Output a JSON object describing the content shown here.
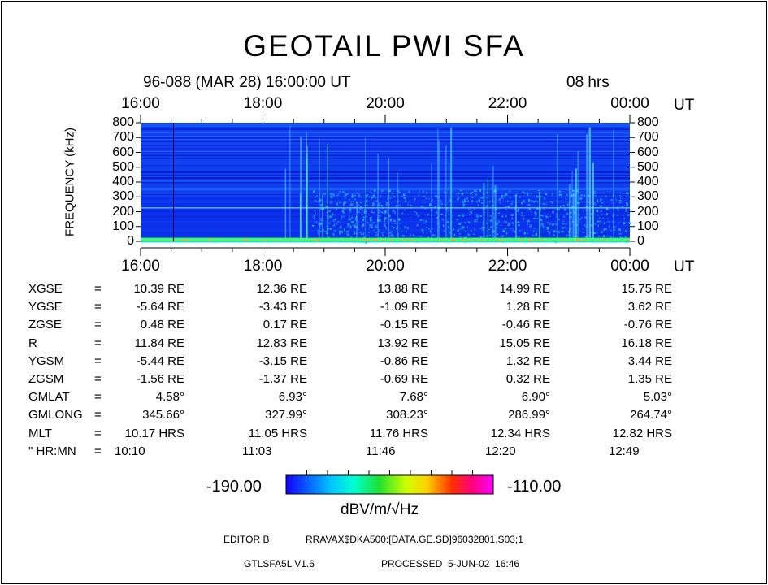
{
  "title": "GEOTAIL PWI SFA",
  "header": {
    "date": "96-088 (MAR 28) 16:00:00 UT",
    "duration": "08 hrs"
  },
  "chart_data": {
    "type": "heatmap",
    "title": "GEOTAIL PWI SFA",
    "xlabel": "UT",
    "ylabel": "FREQUENCY (kHz)",
    "x_ticks": [
      "16:00",
      "18:00",
      "20:00",
      "22:00",
      "00:00"
    ],
    "x_unit": "UT",
    "y_ticks": [
      "0",
      "100",
      "200",
      "300",
      "400",
      "500",
      "600",
      "700",
      "800"
    ],
    "ylim": [
      0,
      800
    ],
    "xlim": [
      "16:00",
      "00:00"
    ],
    "colorbar": {
      "min": "-190.00",
      "max": "-110.00",
      "label": "dBV/m/√Hz"
    }
  },
  "ephemeris": {
    "rows": [
      {
        "label": "XGSE",
        "eq": "=",
        "values": [
          "10.39 RE",
          "12.36 RE",
          "13.88 RE",
          "14.99 RE",
          "15.75 RE"
        ]
      },
      {
        "label": "YGSE",
        "eq": "=",
        "values": [
          "-5.64 RE",
          "-3.43 RE",
          "-1.09 RE",
          "1.28 RE",
          "3.62 RE"
        ]
      },
      {
        "label": "ZGSE",
        "eq": "=",
        "values": [
          "0.48 RE",
          "0.17 RE",
          "-0.15 RE",
          "-0.46 RE",
          "-0.76 RE"
        ]
      },
      {
        "label": "R",
        "eq": "=",
        "values": [
          "11.84 RE",
          "12.83 RE",
          "13.92 RE",
          "15.05 RE",
          "16.18 RE"
        ]
      },
      {
        "label": "YGSM",
        "eq": "=",
        "values": [
          "-5.44 RE",
          "-3.15 RE",
          "-0.86 RE",
          "1.32 RE",
          "3.44 RE"
        ]
      },
      {
        "label": "ZGSM",
        "eq": "=",
        "values": [
          "-1.56 RE",
          "-1.37 RE",
          "-0.69 RE",
          "0.32 RE",
          "1.35 RE"
        ]
      },
      {
        "label": "GMLAT",
        "eq": "=",
        "values": [
          "4.58°",
          "6.93°",
          "7.68°",
          "6.90°",
          "5.03°"
        ]
      },
      {
        "label": "GMLONG",
        "eq": "=",
        "values": [
          "345.66°",
          "327.99°",
          "308.23°",
          "286.99°",
          "264.74°"
        ]
      },
      {
        "label": "MLT",
        "eq": "=",
        "values": [
          "10.17 HRS",
          "11.05 HRS",
          "11.76 HRS",
          "12.34 HRS",
          "12.82 HRS"
        ]
      },
      {
        "label": "\" HR:MN",
        "eq": "=",
        "values": [
          "10:10",
          "11:03",
          "11:46",
          "12:20",
          "12:49"
        ]
      }
    ]
  },
  "footer": {
    "editor": "EDITOR B",
    "path": "RRAVAX$DKA500:[DATA.GE.SD]96032801.S03;1",
    "program": "GTLSFA5L V1.6",
    "processed": "PROCESSED  5-JUN-02  16:46"
  },
  "colors": {
    "background": "#0000f0",
    "accent": "#00ffff",
    "ink": "#000000"
  }
}
